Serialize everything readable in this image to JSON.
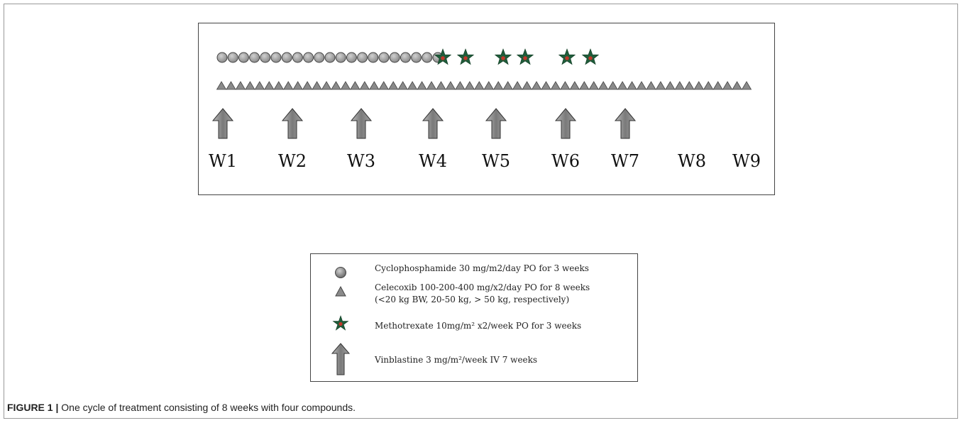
{
  "timeline": {
    "weeks": [
      "W1",
      "W2",
      "W3",
      "W4",
      "W5",
      "W6",
      "W7",
      "W8",
      "W9"
    ],
    "cyclophosphamide_dose_count": 21,
    "methotrexate_dose_count": 6,
    "celecoxib_dose_count": 56,
    "vinblastine_dose_count": 7
  },
  "legend": {
    "items": [
      {
        "icon": "gray-circle-icon",
        "lines": [
          "Cyclophosphamide  30 mg/m2/day  PO for 3 weeks"
        ]
      },
      {
        "icon": "gray-triangle-icon",
        "lines": [
          "Celecoxib  100-200-400 mg/x2/day PO for 8 weeks",
          "(<20 kg BW, 20-50 kg, > 50 kg, respectively)"
        ]
      },
      {
        "icon": "green-star-icon",
        "lines": [
          "Methotrexate 10mg/m² x2/week PO  for 3 weeks"
        ]
      },
      {
        "icon": "gray-arrow-icon",
        "lines": [
          "Vinblastine 3 mg/m²/week IV 7 weeks"
        ]
      }
    ]
  },
  "caption": {
    "label": "FIGURE 1 |",
    "text": " One cycle of treatment consisting of 8 weeks with four compounds."
  },
  "colors": {
    "circle_fill": "#8a8a8a",
    "triangle_fill": "#8a8a8a",
    "star_fill": "#1f5c3a",
    "star_center": "#c0392b",
    "arrow_fill": "#8c8c8c"
  }
}
